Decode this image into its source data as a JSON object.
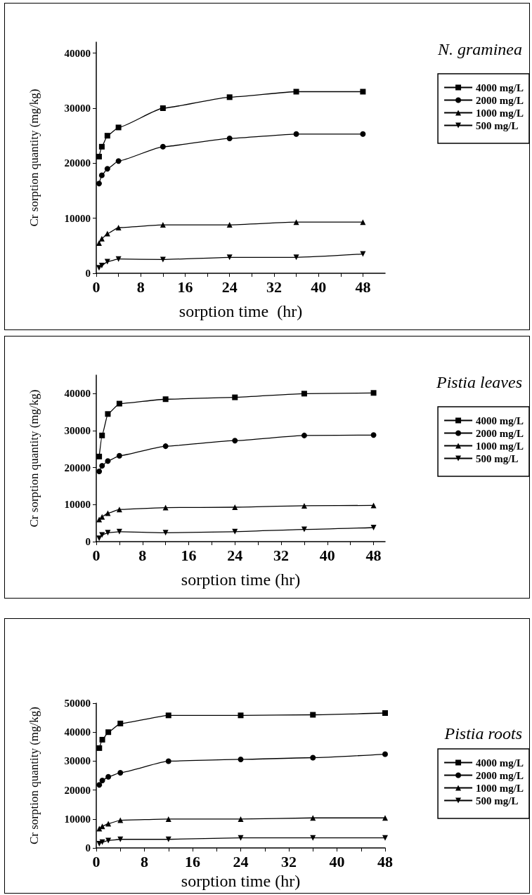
{
  "chart_data": [
    {
      "type": "line",
      "annotations": [
        "N. graminea"
      ],
      "xlabel": "sorption time  (hr)",
      "ylabel": "Cr sorption quantity (mg/kg)",
      "x": [
        0.5,
        1,
        2,
        4,
        12,
        24,
        36,
        48
      ],
      "series": [
        {
          "name": "4000 mg/L",
          "color": "#000000",
          "marker": "square",
          "values": [
            21200,
            23000,
            25000,
            26500,
            30000,
            32000,
            33000,
            33000
          ]
        },
        {
          "name": "2000 mg/L",
          "color": "#000000",
          "marker": "circle",
          "values": [
            16300,
            17800,
            19000,
            20400,
            23000,
            24500,
            25300,
            25300
          ]
        },
        {
          "name": "1000 mg/L",
          "color": "#000000",
          "marker": "triangle",
          "values": [
            5500,
            6300,
            7200,
            8300,
            8800,
            8800,
            9300,
            9300
          ]
        },
        {
          "name": "500 mg/L",
          "color": "#000000",
          "marker": "triangle_down",
          "values": [
            1000,
            1400,
            2100,
            2600,
            2500,
            2900,
            2900,
            3500
          ]
        }
      ],
      "xlim": [
        0,
        52
      ],
      "xticks": [
        0,
        {
          "value": 4,
          "label": null
        },
        8,
        {
          "value": 12,
          "label": null
        },
        16,
        {
          "value": 20,
          "label": null
        },
        24,
        {
          "value": 28,
          "label": null
        },
        32,
        {
          "value": 36,
          "label": null
        },
        40,
        {
          "value": 44,
          "label": null
        },
        48
      ],
      "ylim": [
        0,
        42000
      ],
      "yticks": [
        0,
        10000,
        20000,
        30000,
        40000
      ],
      "legend": "right",
      "grid": false,
      "line_style": "solid"
    },
    {
      "type": "line",
      "annotations": [
        "Pistia leaves"
      ],
      "xlabel": "sorption time (hr)",
      "ylabel": "Cr sorption quantity (mg/kg)",
      "x": [
        0.5,
        1,
        2,
        4,
        12,
        24,
        36,
        48
      ],
      "series": [
        {
          "name": "4000 mg/L",
          "color": "#000000",
          "marker": "square",
          "values": [
            23000,
            28700,
            34500,
            37300,
            38500,
            39000,
            40000,
            40200
          ]
        },
        {
          "name": "2000 mg/L",
          "color": "#000000",
          "marker": "circle",
          "values": [
            19000,
            20500,
            21800,
            23200,
            25800,
            27300,
            28700,
            28800
          ]
        },
        {
          "name": "1000 mg/L",
          "color": "#000000",
          "marker": "triangle",
          "values": [
            6000,
            6700,
            7700,
            8700,
            9200,
            9300,
            9700,
            9800
          ]
        },
        {
          "name": "500 mg/L",
          "color": "#000000",
          "marker": "triangle_down",
          "values": [
            900,
            1800,
            2400,
            2700,
            2400,
            2700,
            3300,
            3800
          ]
        }
      ],
      "xlim": [
        0,
        50
      ],
      "xticks": [
        0,
        {
          "value": 4,
          "label": null
        },
        8,
        {
          "value": 12,
          "label": null
        },
        16,
        {
          "value": 20,
          "label": null
        },
        24,
        {
          "value": 28,
          "label": null
        },
        32,
        {
          "value": 36,
          "label": null
        },
        40,
        {
          "value": 44,
          "label": null
        },
        48
      ],
      "ylim": [
        0,
        45000
      ],
      "yticks": [
        0,
        10000,
        20000,
        30000,
        40000
      ],
      "legend": "right",
      "grid": false,
      "line_style": "solid"
    },
    {
      "type": "line",
      "annotations": [
        "Pistia roots"
      ],
      "xlabel": "sorption time (hr)",
      "ylabel": "Cr sorption quantity (mg/kg)",
      "x": [
        0.5,
        1,
        2,
        4,
        12,
        24,
        36,
        48
      ],
      "series": [
        {
          "name": "4000 mg/L",
          "color": "#000000",
          "marker": "square",
          "values": [
            34500,
            37400,
            40000,
            43000,
            45800,
            45800,
            46000,
            46600
          ]
        },
        {
          "name": "2000 mg/L",
          "color": "#000000",
          "marker": "circle",
          "values": [
            21800,
            23300,
            24600,
            26000,
            30000,
            30600,
            31200,
            32400
          ]
        },
        {
          "name": "1000 mg/L",
          "color": "#000000",
          "marker": "triangle",
          "values": [
            6700,
            7500,
            8400,
            9600,
            10000,
            10000,
            10400,
            10400
          ]
        },
        {
          "name": "500 mg/L",
          "color": "#000000",
          "marker": "triangle_down",
          "values": [
            1500,
            2000,
            2600,
            3000,
            3000,
            3500,
            3500,
            3500
          ]
        }
      ],
      "xlim": [
        0,
        48
      ],
      "xticks": [
        0,
        {
          "value": 4,
          "label": null
        },
        8,
        {
          "value": 12,
          "label": null
        },
        16,
        {
          "value": 20,
          "label": null
        },
        24,
        {
          "value": 28,
          "label": null
        },
        32,
        {
          "value": 36,
          "label": null
        },
        40,
        {
          "value": 44,
          "label": null
        },
        48
      ],
      "ylim": [
        0,
        50000
      ],
      "yticks": [
        0,
        10000,
        20000,
        30000,
        40000,
        50000
      ],
      "legend": "right",
      "grid": false,
      "line_style": "solid"
    }
  ]
}
